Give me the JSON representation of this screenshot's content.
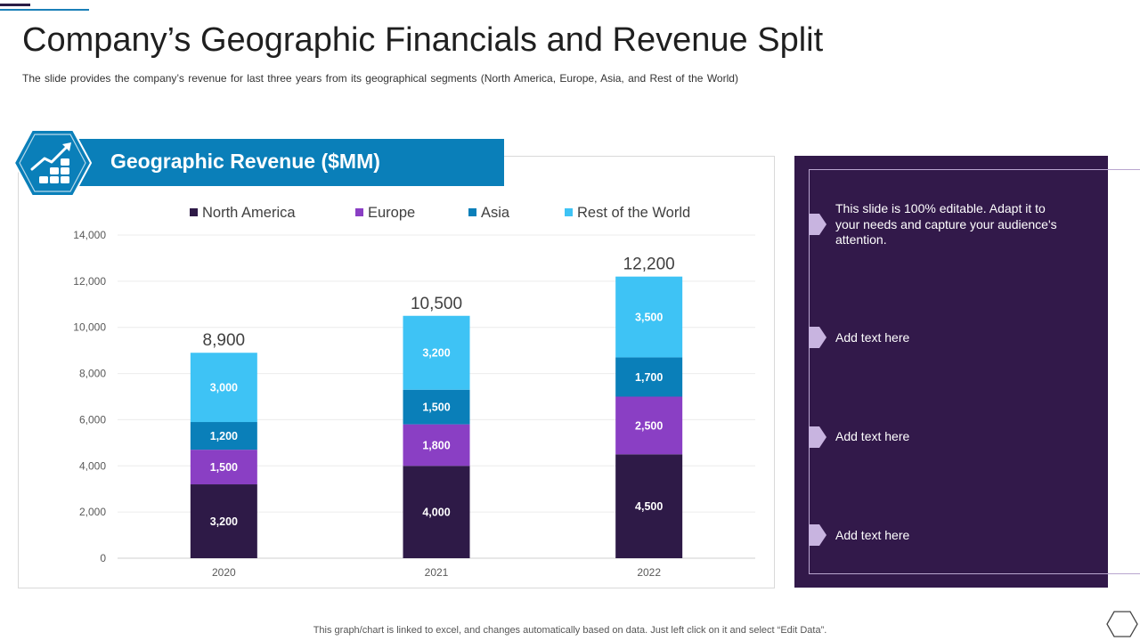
{
  "slide": {
    "title": "Company’s Geographic Financials and Revenue Split",
    "subtitle": "The slide provides  the company’s revenue  for last three years from its geographical  segments (North  America, Europe, Asia, and Rest of the World)",
    "footnote": "This graph/chart is linked to excel,  and changes automatically based on data. Just left click on it and select “Edit Data”."
  },
  "icons": {
    "growth": "growth-chart-icon",
    "corner": "hexagon-outline-icon",
    "marker": "chevron-marker-icon"
  },
  "colors": {
    "north_america": "#2e1a47",
    "europe": "#8a3fc4",
    "asia": "#0a7fb9",
    "rest_of_world": "#3ec3f5",
    "banner": "#0a7fb9",
    "panel": "#32194a",
    "marker": "#c8b4e0"
  },
  "side_panel": {
    "items": [
      "This slide is 100% editable. Adapt it to your needs and capture your audience's attention.",
      "Add text here",
      "Add text here",
      "Add text here"
    ]
  },
  "chart_data": {
    "type": "bar",
    "stacked": true,
    "title": "Geographic Revenue ($MM)",
    "categories": [
      "2020",
      "2021",
      "2022"
    ],
    "series": [
      {
        "name": "North America",
        "values": [
          3200,
          4000,
          4500
        ]
      },
      {
        "name": "Europe",
        "values": [
          1500,
          1800,
          2500
        ]
      },
      {
        "name": "Asia",
        "values": [
          1200,
          1500,
          1700
        ]
      },
      {
        "name": "Rest of the World",
        "values": [
          3000,
          3200,
          3500
        ]
      }
    ],
    "totals": [
      8900,
      10500,
      12200
    ],
    "total_labels": [
      "8,900",
      "10,500",
      "12,200"
    ],
    "value_labels": [
      [
        "3,200",
        "4,000",
        "4,500"
      ],
      [
        "1,500",
        "1,800",
        "2,500"
      ],
      [
        "1,200",
        "1,500",
        "1,700"
      ],
      [
        "3,000",
        "3,200",
        "3,500"
      ]
    ],
    "ylim": [
      0,
      14000
    ],
    "yticks": [
      0,
      2000,
      4000,
      6000,
      8000,
      10000,
      12000,
      14000
    ],
    "ytick_labels": [
      "0",
      "2,000",
      "4,000",
      "6,000",
      "8,000",
      "10,000",
      "12,000",
      "14,000"
    ],
    "grid": true,
    "legend": "top"
  }
}
